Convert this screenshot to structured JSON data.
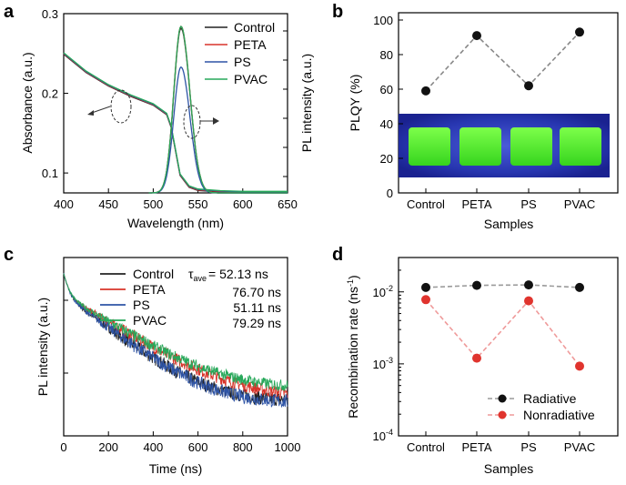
{
  "panels": {
    "a": "a",
    "b": "b",
    "c": "c",
    "d": "d"
  },
  "chart_data": [
    {
      "panel": "a",
      "type": "line",
      "xlabel": "Wavelength (nm)",
      "ylabel": "Absorbance (a.u.)",
      "y2label": "PL intensity (a.u.)",
      "xlim": [
        400,
        650
      ],
      "ylim": [
        0.075,
        0.3
      ],
      "xticks": [
        400,
        450,
        500,
        550,
        600,
        650
      ],
      "yticks": [
        0.1,
        0.2,
        0.3
      ],
      "ytick_labels": [
        "0.1",
        "0.2",
        "0.3"
      ],
      "legend": [
        "Control",
        "PETA",
        "PS",
        "PVAC"
      ],
      "colors": {
        "Control": "#222222",
        "PETA": "#d8342a",
        "PS": "#2e54a6",
        "PVAC": "#27a85a"
      },
      "absorbance_x": [
        400,
        425,
        450,
        475,
        500,
        515,
        520,
        525,
        530,
        540,
        550,
        575,
        600,
        650
      ],
      "absorbance_y": [
        0.25,
        0.227,
        0.21,
        0.197,
        0.186,
        0.174,
        0.158,
        0.128,
        0.098,
        0.083,
        0.079,
        0.077,
        0.076,
        0.076
      ],
      "pl_peak_nm": 531,
      "pl_peak_values": {
        "Control": 0.85,
        "PETA": 0.86,
        "PS": 0.65,
        "PVAC": 0.86
      }
    },
    {
      "panel": "b",
      "type": "scatter",
      "categories": [
        "Control",
        "PETA",
        "PS",
        "PVAC"
      ],
      "values": [
        59,
        91,
        62,
        93
      ],
      "xlabel": "Samples",
      "ylabel": "PLQY (%)",
      "ylim": [
        0,
        100
      ],
      "yticks": [
        0,
        20,
        40,
        60,
        80,
        100
      ]
    },
    {
      "panel": "c",
      "type": "line",
      "xlabel": "Time (ns)",
      "ylabel": "PL intensity (a.u.)",
      "xlim": [
        0,
        1000
      ],
      "xticks": [
        0,
        200,
        400,
        600,
        800,
        1000
      ],
      "yscale": "log",
      "legend": [
        "Control",
        "PETA",
        "PS",
        "PVAC"
      ],
      "tau_label": "τ",
      "tau_sub": "ave",
      "tau_eq": "= 52.13 ns",
      "tau_values": [
        "52.13 ns",
        "76.70 ns",
        "51.11 ns",
        "79.29 ns"
      ],
      "colors": {
        "Control": "#222222",
        "PETA": "#d8342a",
        "PS": "#2e54a6",
        "PVAC": "#27a85a"
      }
    },
    {
      "panel": "d",
      "type": "scatter",
      "categories": [
        "Control",
        "PETA",
        "PS",
        "PVAC"
      ],
      "yscale": "log",
      "ylim": [
        0.0001,
        0.03
      ],
      "yticks": [
        0.0001,
        0.001,
        0.01
      ],
      "xlabel": "Samples",
      "ylabel_main": "Recombination rate (ns",
      "ylabel_sup": "-1",
      "ylabel_end": ")",
      "series": [
        {
          "name": "Radiative",
          "values": [
            0.0115,
            0.0123,
            0.0125,
            0.0115
          ],
          "color": "#111111",
          "line": "#9a9a9a"
        },
        {
          "name": "Nonradiative",
          "values": [
            0.0078,
            0.0012,
            0.0075,
            0.00093
          ],
          "color": "#e0342e",
          "line": "#ef9a9a"
        }
      ]
    }
  ]
}
